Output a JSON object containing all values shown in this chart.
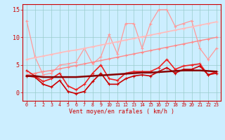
{
  "x": [
    0,
    1,
    2,
    3,
    4,
    5,
    6,
    7,
    8,
    9,
    10,
    11,
    12,
    13,
    14,
    15,
    16,
    17,
    18,
    19,
    20,
    21,
    22,
    23
  ],
  "background_color": "#cceeff",
  "grid_color": "#99cccc",
  "xlabel": "Vent moyen/en rafales ( km/h )",
  "xlim": [
    -0.5,
    23.5
  ],
  "ylim": [
    -1.5,
    16
  ],
  "yticks": [
    0,
    5,
    10,
    15
  ],
  "line_volatile_color": "#ff9999",
  "line_volatile_y": [
    13.0,
    6.5,
    3.2,
    3.5,
    5.0,
    5.2,
    5.5,
    8.0,
    5.2,
    6.5,
    10.5,
    7.0,
    12.5,
    12.5,
    8.0,
    12.5,
    15.0,
    15.0,
    12.0,
    12.5,
    13.0,
    8.0,
    6.0,
    8.0
  ],
  "line_volatile_lw": 0.9,
  "line_trend1_color": "#ffbbbb",
  "line_trend1_y": [
    6.0,
    6.3,
    6.6,
    6.9,
    7.2,
    7.5,
    7.7,
    8.0,
    8.3,
    8.6,
    8.9,
    9.2,
    9.5,
    9.8,
    10.1,
    10.4,
    10.7,
    11.0,
    11.3,
    11.6,
    11.9,
    12.2,
    12.5,
    12.8
  ],
  "line_trend1_lw": 1.2,
  "line_trend2_color": "#ff8888",
  "line_trend2_y": [
    3.2,
    3.5,
    3.8,
    4.0,
    4.3,
    4.6,
    4.9,
    5.2,
    5.5,
    5.8,
    6.1,
    6.4,
    6.7,
    7.0,
    7.3,
    7.6,
    7.9,
    8.2,
    8.5,
    8.8,
    9.1,
    9.4,
    9.7,
    10.0
  ],
  "line_trend2_lw": 1.0,
  "line_med_color": "#ee2222",
  "line_med_y": [
    4.0,
    3.0,
    2.0,
    2.5,
    3.5,
    1.2,
    0.5,
    1.5,
    3.5,
    5.0,
    2.5,
    2.2,
    3.5,
    3.8,
    3.8,
    3.8,
    4.5,
    6.0,
    4.2,
    4.8,
    5.0,
    5.2,
    3.2,
    3.8
  ],
  "line_med_lw": 1.2,
  "line_low_color": "#cc0000",
  "line_low_y": [
    3.0,
    2.8,
    1.5,
    1.0,
    2.2,
    0.2,
    -0.2,
    0.2,
    2.0,
    3.5,
    1.5,
    1.5,
    2.5,
    3.0,
    3.2,
    3.0,
    3.8,
    4.5,
    3.5,
    4.2,
    4.2,
    4.8,
    3.2,
    3.5
  ],
  "line_low_lw": 1.2,
  "line_base_color": "#880000",
  "line_base_y": [
    3.0,
    3.0,
    2.8,
    2.8,
    2.8,
    2.8,
    2.8,
    2.9,
    3.0,
    3.1,
    3.2,
    3.3,
    3.4,
    3.5,
    3.6,
    3.6,
    3.7,
    3.8,
    3.9,
    4.0,
    4.0,
    4.0,
    3.9,
    3.8
  ],
  "line_base_lw": 1.8,
  "marker": "+",
  "markersize": 3.5,
  "markeredgewidth": 0.8
}
